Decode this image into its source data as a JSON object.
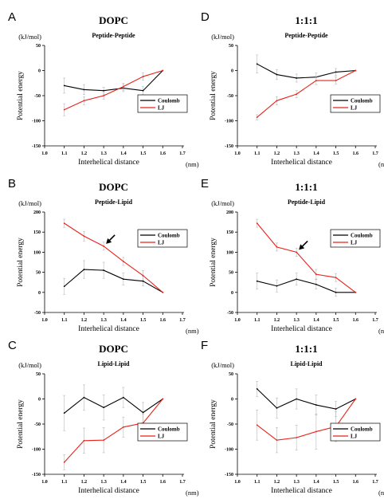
{
  "colors": {
    "coulomb": "#000000",
    "lj": "#e8231b",
    "error_bar": "#b8b8b8"
  },
  "chart_data": [
    {
      "type": "line",
      "panel": "A",
      "title": "DOPC",
      "subtitle": "Peptide-Peptide",
      "ylabel": "Potential energy",
      "yunit": "(kJ/mol)",
      "xlabel": "Interhelical distance",
      "xunit": "(nm)",
      "xlim": [
        1.0,
        1.7
      ],
      "ylim": [
        -150,
        50
      ],
      "xticks": [
        "1.0",
        "1.1",
        "1.2",
        "1.3",
        "1.4",
        "1.5",
        "1.6",
        "1.7"
      ],
      "yticks": [
        "50",
        "0",
        "-50",
        "-100",
        "-150"
      ],
      "x": [
        1.1,
        1.2,
        1.3,
        1.4,
        1.5,
        1.6
      ],
      "legend": "right",
      "series": [
        {
          "name": "Coulomb",
          "values": [
            -30,
            -38,
            -40,
            -35,
            -40,
            0
          ],
          "errors": [
            15,
            10,
            7,
            7,
            8,
            0
          ]
        },
        {
          "name": "LJ",
          "values": [
            -78,
            -60,
            -50,
            -32,
            -12,
            0
          ],
          "errors": [
            12,
            8,
            7,
            7,
            7,
            0
          ]
        }
      ]
    },
    {
      "type": "line",
      "panel": "D",
      "title": "1:1:1",
      "subtitle": "Peptide-Peptide",
      "ylabel": "Potential energy",
      "yunit": "(kJ/mol)",
      "xlabel": "Interhelical distance",
      "xunit": "(nm)",
      "xlim": [
        1.0,
        1.7
      ],
      "ylim": [
        -150,
        50
      ],
      "xticks": [
        "1.0",
        "1.1",
        "1.2",
        "1.3",
        "1.4",
        "1.5",
        "1.6",
        "1.7"
      ],
      "yticks": [
        "50",
        "0",
        "-50",
        "-100",
        "-150"
      ],
      "x": [
        1.1,
        1.2,
        1.3,
        1.4,
        1.5,
        1.6
      ],
      "legend": "right",
      "series": [
        {
          "name": "Coulomb",
          "values": [
            13,
            -8,
            -15,
            -13,
            -3,
            0
          ],
          "errors": [
            18,
            10,
            8,
            8,
            7,
            0
          ]
        },
        {
          "name": "LJ",
          "values": [
            -93,
            -60,
            -47,
            -20,
            -20,
            0
          ],
          "errors": [
            5,
            8,
            7,
            8,
            7,
            0
          ]
        }
      ]
    },
    {
      "type": "line",
      "panel": "B",
      "title": "DOPC",
      "subtitle": "Peptide-Lipid",
      "ylabel": "Potential energy",
      "yunit": "(kJ/mol)",
      "xlabel": "Interhelical distance",
      "xunit": "(nm)",
      "xlim": [
        1.0,
        1.7
      ],
      "ylim": [
        -50,
        200
      ],
      "xticks": [
        "1.0",
        "1.1",
        "1.2",
        "1.3",
        "1.4",
        "1.5",
        "1.6",
        "1.7"
      ],
      "yticks": [
        "200",
        "150",
        "100",
        "50",
        "0",
        "-50"
      ],
      "x": [
        1.1,
        1.2,
        1.3,
        1.4,
        1.5,
        1.6
      ],
      "legend": "right",
      "arrow_at": [
        1.3,
        115
      ],
      "series": [
        {
          "name": "Coulomb",
          "values": [
            15,
            57,
            55,
            33,
            28,
            0
          ],
          "errors": [
            20,
            22,
            20,
            15,
            12,
            0
          ]
        },
        {
          "name": "LJ",
          "values": [
            172,
            140,
            115,
            77,
            42,
            0
          ],
          "errors": [
            10,
            12,
            10,
            10,
            12,
            0
          ]
        }
      ]
    },
    {
      "type": "line",
      "panel": "E",
      "title": "1:1:1",
      "subtitle": "Peptide-Lipid",
      "ylabel": "Potential energy",
      "yunit": "(kJ/mol)",
      "xlabel": "Interhelical distance",
      "xunit": "(nm)",
      "xlim": [
        1.0,
        1.7
      ],
      "ylim": [
        -50,
        200
      ],
      "xticks": [
        "1.0",
        "1.1",
        "1.2",
        "1.3",
        "1.4",
        "1.5",
        "1.6",
        "1.7"
      ],
      "yticks": [
        "200",
        "150",
        "100",
        "50",
        "0",
        "-50"
      ],
      "x": [
        1.1,
        1.2,
        1.3,
        1.4,
        1.5,
        1.6
      ],
      "legend": "right",
      "arrow_at": [
        1.3,
        100
      ],
      "series": [
        {
          "name": "Coulomb",
          "values": [
            28,
            16,
            33,
            20,
            0,
            0
          ],
          "errors": [
            20,
            15,
            15,
            12,
            10,
            0
          ]
        },
        {
          "name": "LJ",
          "values": [
            172,
            113,
            100,
            45,
            37,
            0
          ],
          "errors": [
            10,
            10,
            10,
            12,
            10,
            0
          ]
        }
      ]
    },
    {
      "type": "line",
      "panel": "C",
      "title": "DOPC",
      "subtitle": "Lipid-Lipid",
      "ylabel": "Potential energy",
      "yunit": "(kJ/mol)",
      "xlabel": "Interhelical distance",
      "xunit": "(nm)",
      "xlim": [
        1.0,
        1.7
      ],
      "ylim": [
        -150,
        50
      ],
      "xticks": [
        "1.0",
        "1.1",
        "1.2",
        "1.3",
        "1.4",
        "1.5",
        "1.6",
        "1.7"
      ],
      "yticks": [
        "50",
        "0",
        "-50",
        "-100",
        "-150"
      ],
      "x": [
        1.1,
        1.2,
        1.3,
        1.4,
        1.5,
        1.6
      ],
      "legend": "right",
      "series": [
        {
          "name": "Coulomb",
          "values": [
            -28,
            3,
            -17,
            3,
            -27,
            0
          ],
          "errors": [
            35,
            25,
            25,
            20,
            20,
            0
          ]
        },
        {
          "name": "LJ",
          "values": [
            -126,
            -83,
            -82,
            -56,
            -48,
            0
          ],
          "errors": [
            15,
            25,
            25,
            20,
            18,
            0
          ]
        }
      ]
    },
    {
      "type": "line",
      "panel": "F",
      "title": "1:1:1",
      "subtitle": "Lipid-Lipid",
      "ylabel": "Potential energy",
      "yunit": "(kJ/mol)",
      "xlabel": "Interhelical distance",
      "xunit": "(nm)",
      "xlim": [
        1.0,
        1.7
      ],
      "ylim": [
        -150,
        50
      ],
      "xticks": [
        "1.0",
        "1.1",
        "1.2",
        "1.3",
        "1.4",
        "1.5",
        "1.6",
        "1.7"
      ],
      "yticks": [
        "50",
        "0",
        "-50",
        "-100",
        "-150"
      ],
      "x": [
        1.1,
        1.2,
        1.3,
        1.4,
        1.5,
        1.6
      ],
      "legend": "right",
      "series": [
        {
          "name": "Coulomb",
          "values": [
            20,
            -18,
            0,
            -12,
            -20,
            0
          ],
          "errors": [
            15,
            20,
            20,
            20,
            15,
            0
          ]
        },
        {
          "name": "LJ",
          "values": [
            -52,
            -82,
            -77,
            -65,
            -55,
            0
          ],
          "errors": [
            30,
            25,
            25,
            35,
            30,
            0
          ]
        }
      ]
    }
  ]
}
